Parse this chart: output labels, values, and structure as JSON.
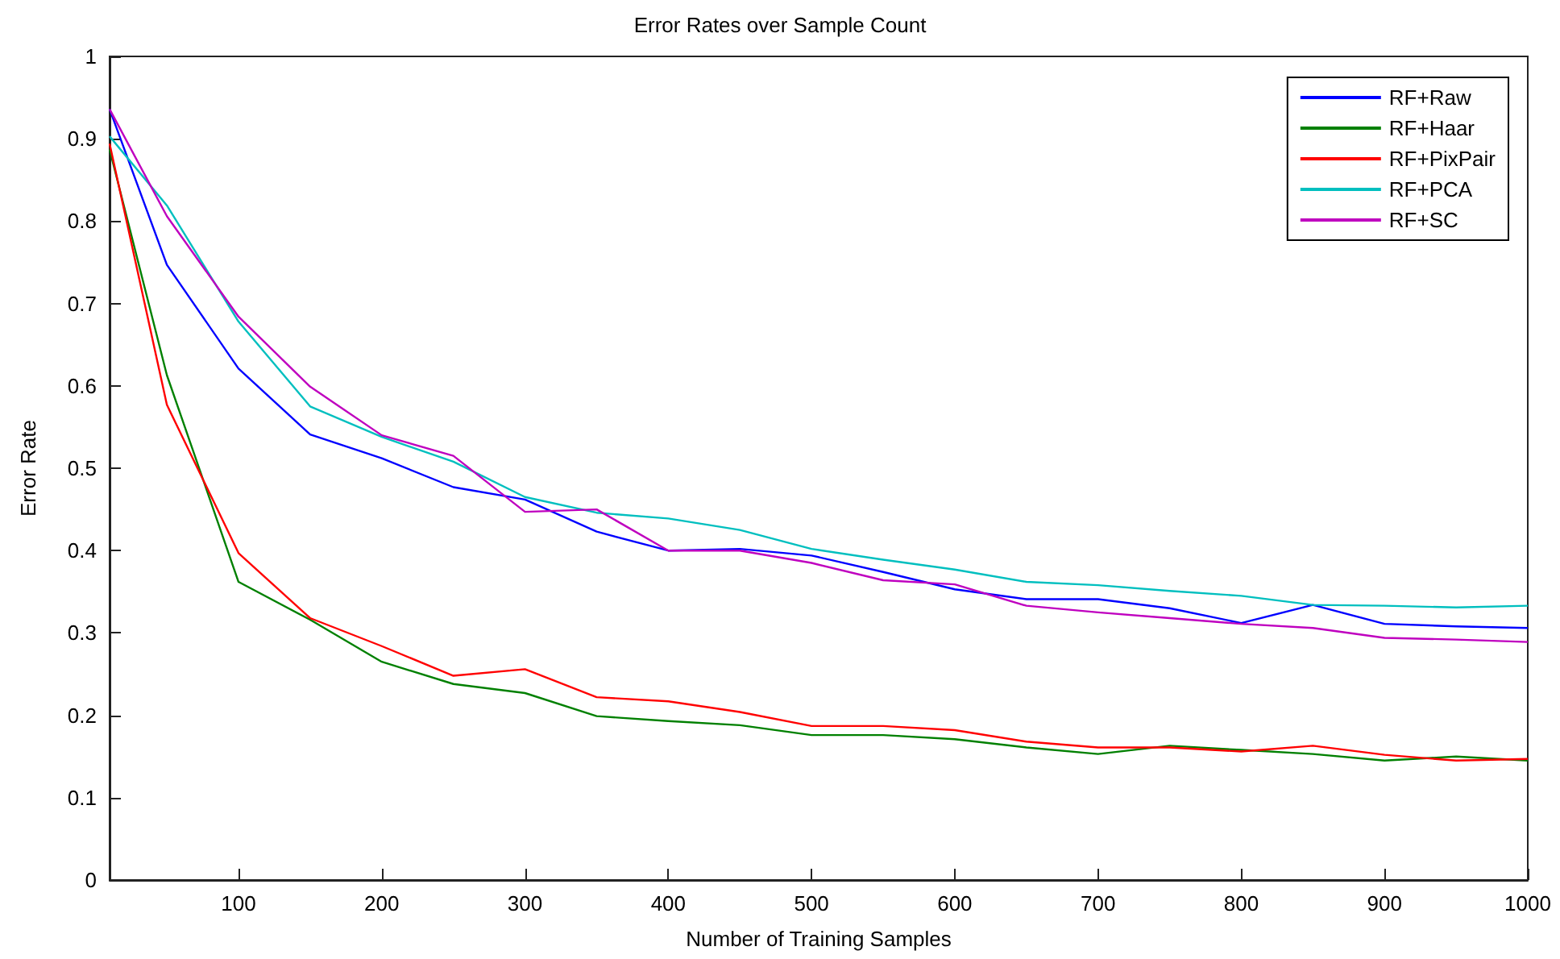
{
  "chart_data": {
    "type": "line",
    "title": "Error Rates over Sample Count",
    "xlabel": "Number of Training Samples",
    "ylabel": "Error Rate",
    "x": [
      10,
      50,
      100,
      150,
      200,
      250,
      300,
      350,
      400,
      450,
      500,
      550,
      600,
      650,
      700,
      750,
      800,
      850,
      900,
      950,
      1000
    ],
    "series": [
      {
        "name": "RF+Raw",
        "color": "#0000ff",
        "values": [
          0.936,
          0.747,
          0.621,
          0.541,
          0.512,
          0.477,
          0.462,
          0.423,
          0.4,
          0.402,
          0.394,
          0.374,
          0.353,
          0.341,
          0.341,
          0.33,
          0.312,
          0.334,
          0.311,
          0.308,
          0.306
        ]
      },
      {
        "name": "RF+Haar",
        "color": "#008000",
        "values": [
          0.887,
          0.613,
          0.362,
          0.316,
          0.265,
          0.238,
          0.227,
          0.199,
          0.193,
          0.188,
          0.176,
          0.176,
          0.171,
          0.161,
          0.153,
          0.163,
          0.158,
          0.153,
          0.145,
          0.15,
          0.145
        ]
      },
      {
        "name": "RF+PixPair",
        "color": "#ff0000",
        "values": [
          0.894,
          0.577,
          0.397,
          0.318,
          0.284,
          0.248,
          0.256,
          0.222,
          0.217,
          0.204,
          0.187,
          0.187,
          0.182,
          0.168,
          0.161,
          0.161,
          0.156,
          0.163,
          0.152,
          0.145,
          0.147
        ]
      },
      {
        "name": "RF+PCA",
        "color": "#00bfbf",
        "values": [
          0.903,
          0.819,
          0.678,
          0.575,
          0.538,
          0.508,
          0.465,
          0.446,
          0.439,
          0.425,
          0.402,
          0.389,
          0.377,
          0.362,
          0.358,
          0.351,
          0.345,
          0.334,
          0.333,
          0.331,
          0.333
        ]
      },
      {
        "name": "RF+SC",
        "color": "#bf00bf",
        "values": [
          0.936,
          0.806,
          0.684,
          0.599,
          0.54,
          0.515,
          0.447,
          0.45,
          0.4,
          0.4,
          0.385,
          0.364,
          0.359,
          0.333,
          0.325,
          0.318,
          0.311,
          0.306,
          0.294,
          0.292,
          0.289
        ]
      }
    ],
    "xlim": [
      10,
      1000
    ],
    "xticks": [
      100,
      200,
      300,
      400,
      500,
      600,
      700,
      800,
      900,
      1000
    ],
    "ylim": [
      0,
      1
    ],
    "yticks": [
      0,
      0.1,
      0.2,
      0.3,
      0.4,
      0.5,
      0.6,
      0.7,
      0.8,
      0.9,
      1
    ],
    "grid": false,
    "legend": "top right",
    "marker": "none",
    "line_style": "solid"
  }
}
